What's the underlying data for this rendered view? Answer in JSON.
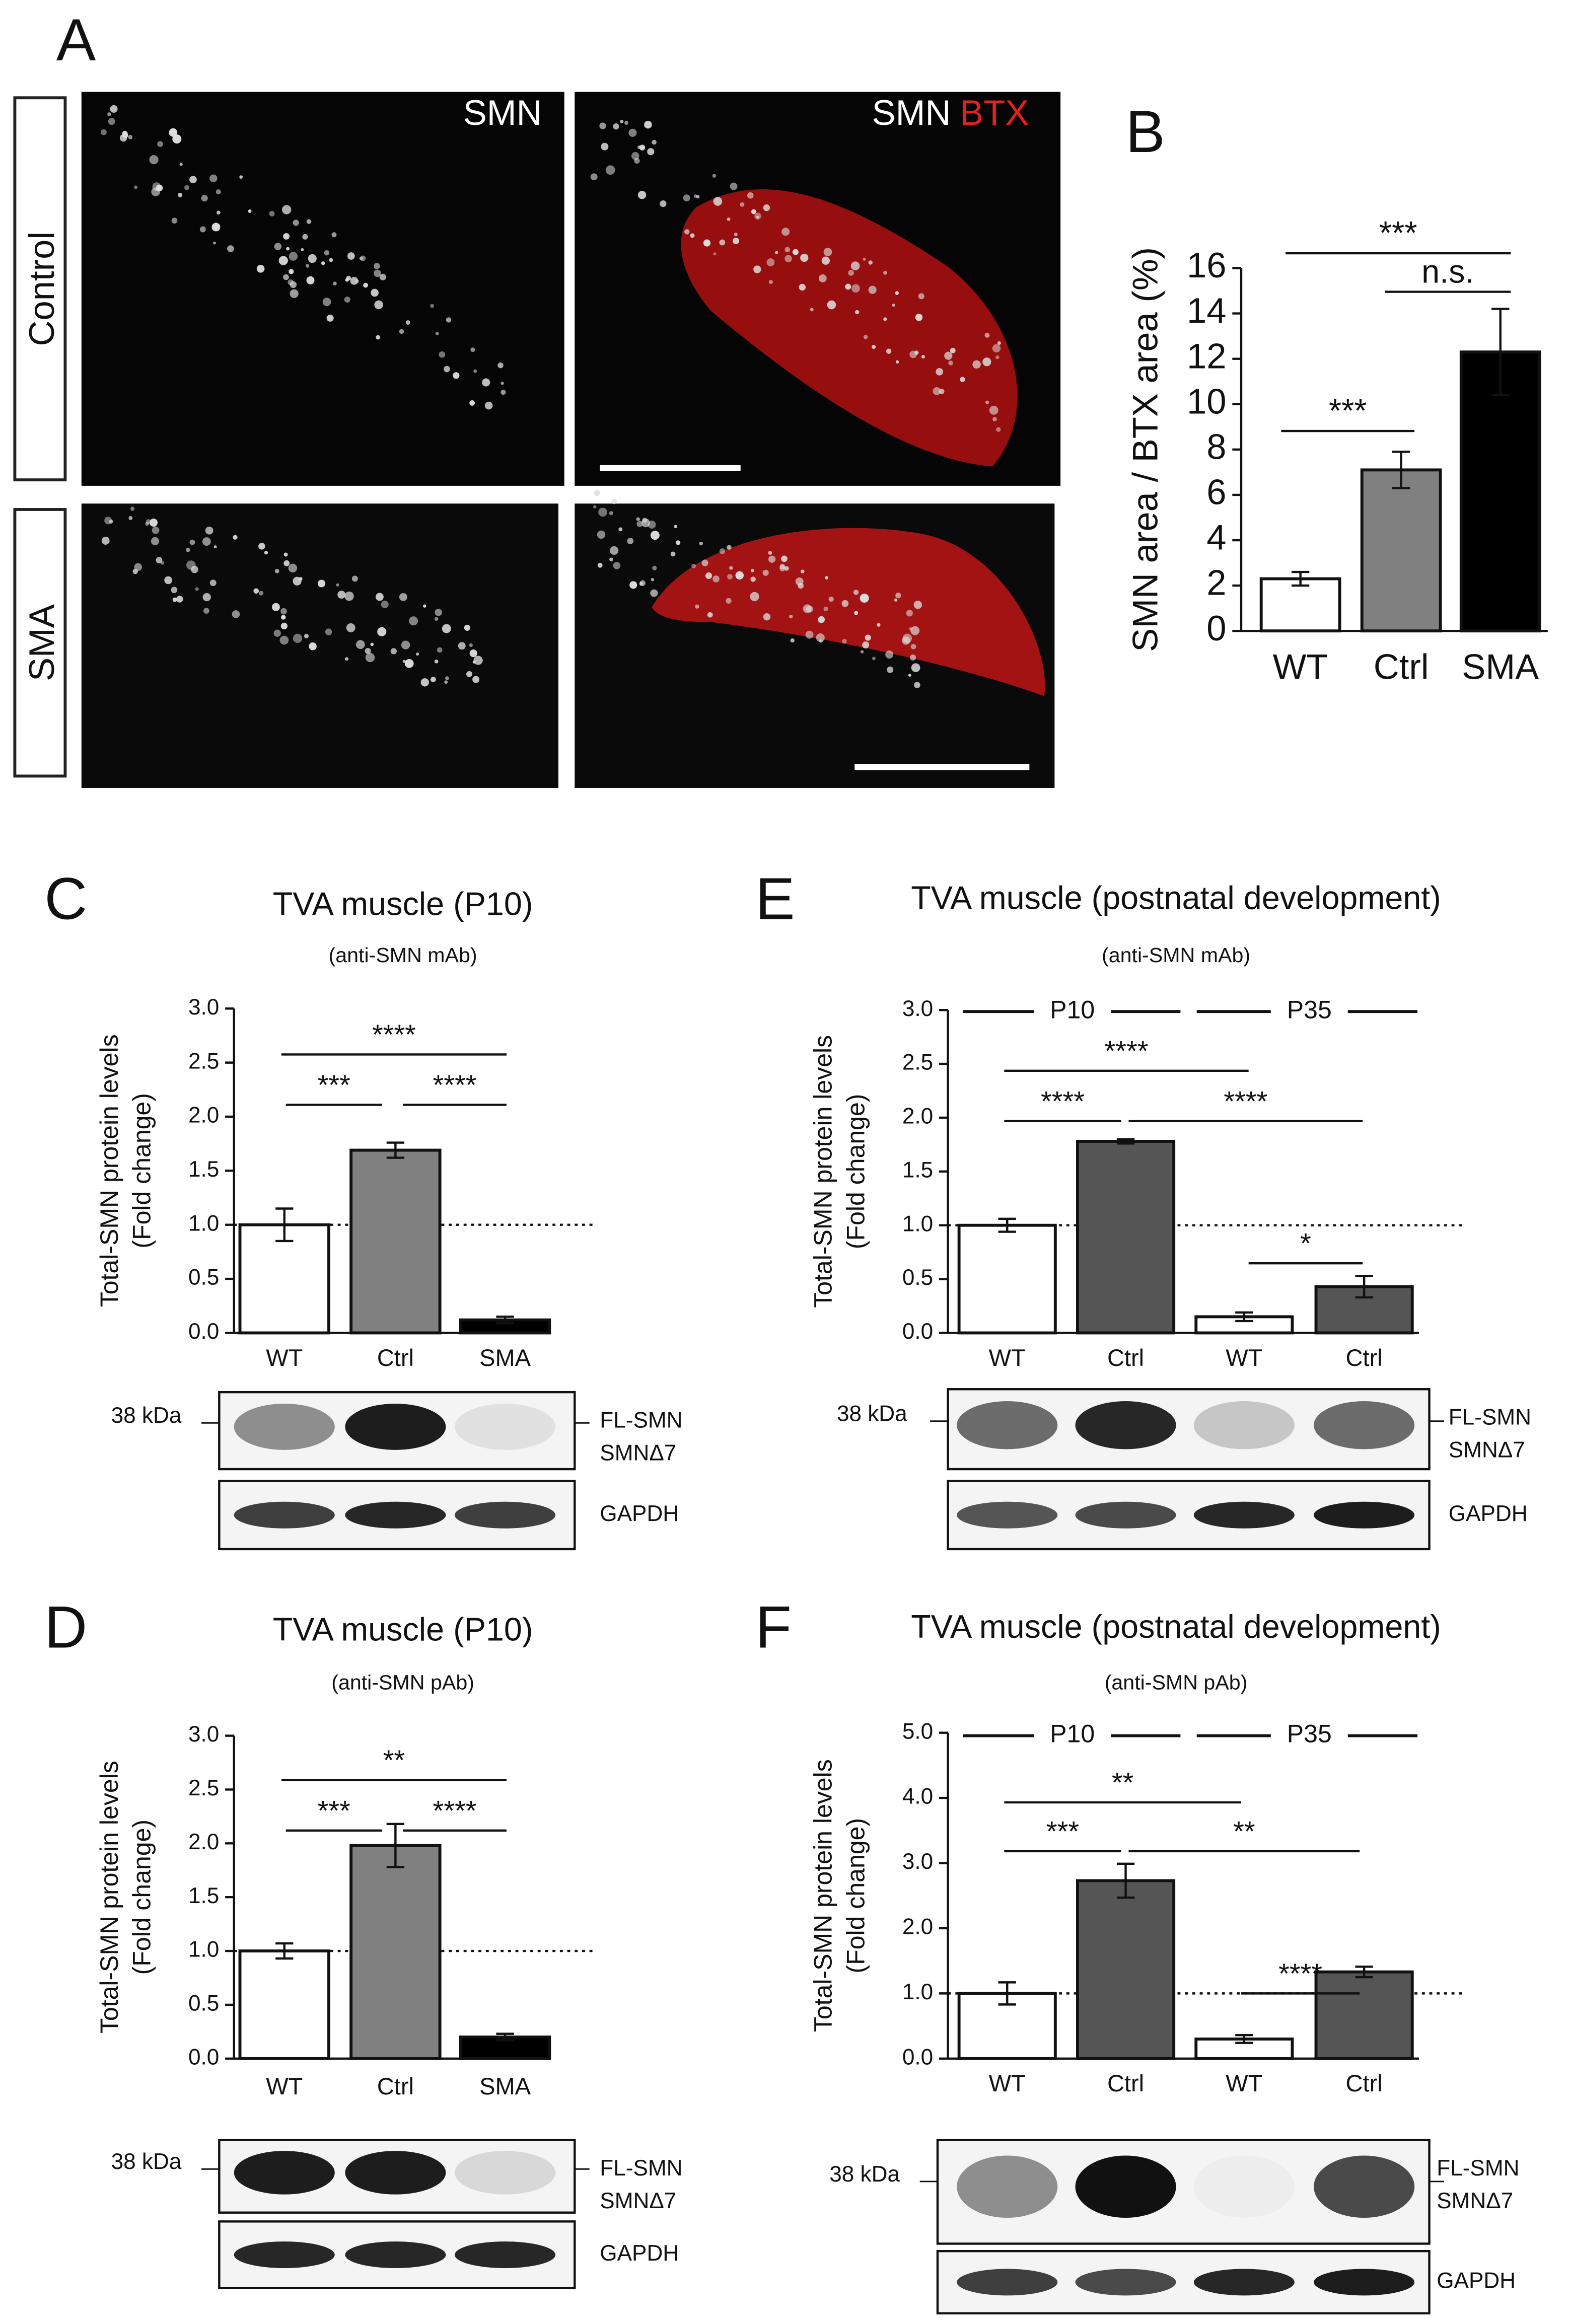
{
  "panel_labels": [
    "A",
    "B",
    "C",
    "D",
    "E",
    "F"
  ],
  "micrographs": {
    "rows": [
      "Control",
      "SMA"
    ],
    "channels": [
      "SMN",
      "SMN",
      "BTX"
    ]
  },
  "blots": [
    {
      "marker": "38 kDa",
      "bands": [
        "FL-SMN",
        "SMNΔ7",
        "GAPDH"
      ]
    },
    {
      "marker": "38 kDa",
      "bands": [
        "FL-SMN",
        "SMNΔ7",
        "GAPDH"
      ]
    },
    {
      "marker": "38 kDa",
      "bands": [
        "FL-SMN",
        "SMNΔ7",
        "GAPDH"
      ]
    },
    {
      "marker": "38 kDa",
      "bands": [
        "FL-SMN",
        "SMNΔ7",
        "GAPDH"
      ]
    }
  ],
  "chart_data": [
    {
      "type": "bar",
      "y_label": [
        "SMN area / BTX area (%)"
      ],
      "categories": [
        "WT",
        "Ctrl",
        "SMA"
      ],
      "values": [
        2.3,
        7.1,
        12.3
      ],
      "errors": [
        0.3,
        0.8,
        1.9
      ],
      "colors": [
        "#ffffff",
        "#808080",
        "#000000"
      ],
      "ylim": [
        0,
        16
      ],
      "yticks": [
        0,
        2,
        4,
        6,
        8,
        10,
        12,
        14,
        16
      ],
      "annotations": [
        "***",
        "n.s.",
        "***"
      ]
    },
    {
      "type": "bar",
      "title": "TVA muscle (P10)",
      "subtitle": "(anti-SMN mAb)",
      "y_label": [
        "Total-SMN protein levels",
        "(Fold change)"
      ],
      "categories": [
        "WT",
        "Ctrl",
        "SMA"
      ],
      "values": [
        1.0,
        1.69,
        0.12
      ],
      "errors": [
        0.15,
        0.07,
        0.03
      ],
      "colors": [
        "#ffffff",
        "#808080",
        "#000000"
      ],
      "reference_line": 1,
      "ylim": [
        0,
        3
      ],
      "yticks": [
        {
          "value": 0,
          "label": "0.0"
        },
        {
          "value": 0.5,
          "label": "0.5"
        },
        {
          "value": 1,
          "label": "1.0"
        },
        {
          "value": 1.5,
          "label": "1.5"
        },
        {
          "value": 2,
          "label": "2.0"
        },
        {
          "value": 2.5,
          "label": "2.5"
        },
        {
          "value": 3,
          "label": "3.0"
        }
      ],
      "annotations": [
        "****",
        "***",
        "****"
      ]
    },
    {
      "type": "bar",
      "title": "TVA muscle (P10)",
      "subtitle": "(anti-SMN pAb)",
      "y_label": [
        "Total-SMN protein levels",
        "(Fold change)"
      ],
      "categories": [
        "WT",
        "Ctrl",
        "SMA"
      ],
      "values": [
        1.0,
        1.98,
        0.2
      ],
      "errors": [
        0.07,
        0.2,
        0.03
      ],
      "colors": [
        "#ffffff",
        "#808080",
        "#000000"
      ],
      "reference_line": 1,
      "ylim": [
        0,
        3
      ],
      "yticks": [
        {
          "value": 0,
          "label": "0.0"
        },
        {
          "value": 0.5,
          "label": "0.5"
        },
        {
          "value": 1,
          "label": "1.0"
        },
        {
          "value": 1.5,
          "label": "1.5"
        },
        {
          "value": 2,
          "label": "2.0"
        },
        {
          "value": 2.5,
          "label": "2.5"
        },
        {
          "value": 3,
          "label": "3.0"
        }
      ],
      "annotations": [
        "**",
        "***",
        "****"
      ]
    },
    {
      "type": "bar",
      "title": "TVA muscle (postnatal development)",
      "subtitle": "(anti-SMN mAb)",
      "y_label": [
        "Total-SMN protein levels",
        "(Fold change)"
      ],
      "categories": [
        "WT",
        "Ctrl",
        "WT",
        "Ctrl"
      ],
      "groups": [
        "P10",
        "P35"
      ],
      "values": [
        1.0,
        1.78,
        0.15,
        0.43
      ],
      "errors": [
        0.06,
        0.02,
        0.04,
        0.1
      ],
      "colors": [
        "#ffffff",
        "#555555",
        "#ffffff",
        "#555555"
      ],
      "reference_line": 1,
      "ylim": [
        0,
        3
      ],
      "yticks": [
        {
          "value": 0,
          "label": "0.0"
        },
        {
          "value": 0.5,
          "label": "0.5"
        },
        {
          "value": 1,
          "label": "1.0"
        },
        {
          "value": 1.5,
          "label": "1.5"
        },
        {
          "value": 2,
          "label": "2.0"
        },
        {
          "value": 2.5,
          "label": "2.5"
        },
        {
          "value": 3,
          "label": "3.0"
        }
      ],
      "annotations": [
        "****",
        "****",
        "****",
        "*"
      ]
    },
    {
      "type": "bar",
      "title": "TVA muscle (postnatal development)",
      "subtitle": "(anti-SMN pAb)",
      "y_label": [
        "Total-SMN protein levels",
        "(Fold change)"
      ],
      "categories": [
        "WT",
        "Ctrl",
        "WT",
        "Ctrl"
      ],
      "groups": [
        "P10",
        "P35"
      ],
      "values": [
        1.0,
        2.73,
        0.3,
        1.33
      ],
      "errors": [
        0.17,
        0.26,
        0.06,
        0.08
      ],
      "colors": [
        "#ffffff",
        "#555555",
        "#ffffff",
        "#555555"
      ],
      "reference_line": 1,
      "ylim": [
        0,
        5
      ],
      "yticks": [
        {
          "value": 0,
          "label": "0.0"
        },
        {
          "value": 1,
          "label": "1.0"
        },
        {
          "value": 2,
          "label": "2.0"
        },
        {
          "value": 3,
          "label": "3.0"
        },
        {
          "value": 4,
          "label": "4.0"
        },
        {
          "value": 5,
          "label": "5.0"
        }
      ],
      "annotations": [
        "**",
        "***",
        "**",
        "****"
      ]
    }
  ]
}
